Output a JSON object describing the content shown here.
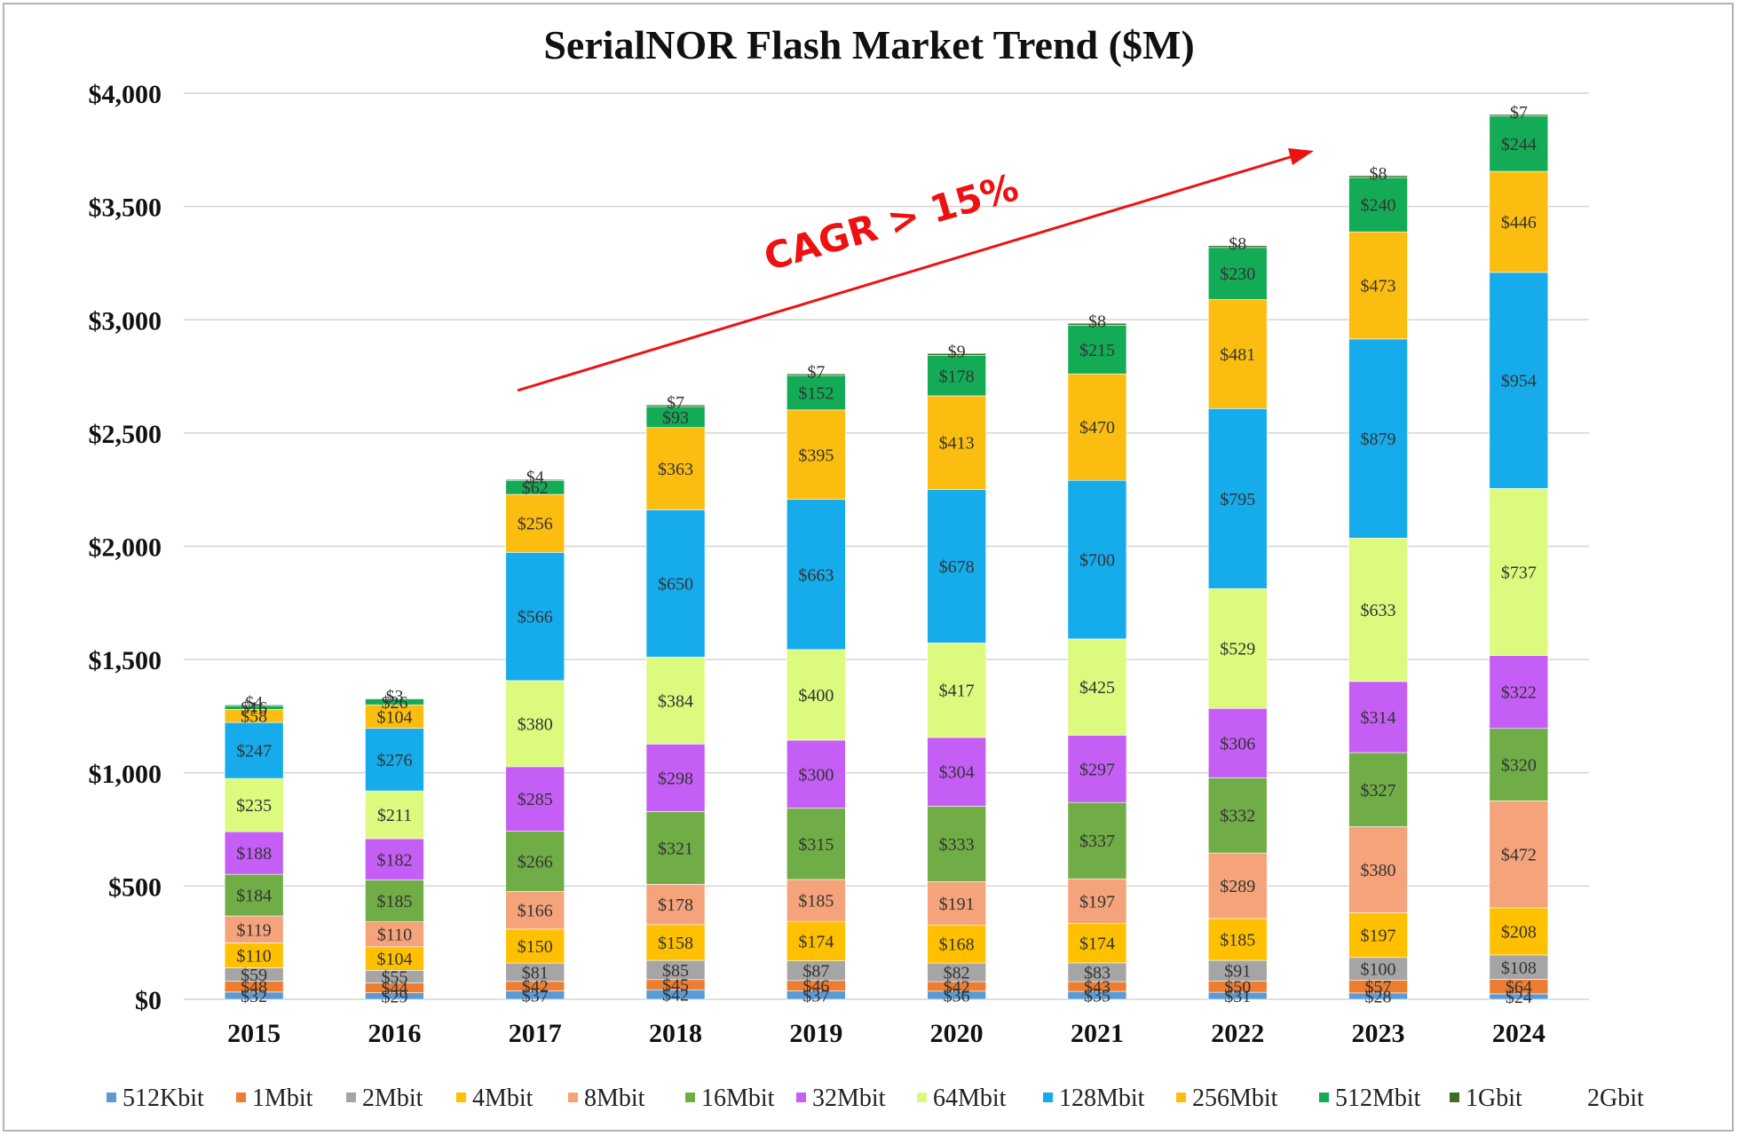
{
  "chart_data": {
    "type": "bar",
    "stacked": true,
    "title": "SerialNOR Flash Market Trend ($M)",
    "xlabel": "",
    "ylabel": "",
    "ylim": [
      0,
      4000
    ],
    "yticks": [
      0,
      500,
      1000,
      1500,
      2000,
      2500,
      3000,
      3500,
      4000
    ],
    "ytick_labels": [
      "$0",
      "$500",
      "$1,000",
      "$1,500",
      "$2,000",
      "$2,500",
      "$3,000",
      "$3,500",
      "$4,000"
    ],
    "grid": true,
    "legend_position": "bottom",
    "categories": [
      "2015",
      "2016",
      "2017",
      "2018",
      "2019",
      "2020",
      "2021",
      "2022",
      "2023",
      "2024"
    ],
    "annotation": {
      "text": "CAGR > 15%",
      "color": "#ee1111"
    },
    "series": [
      {
        "name": "512Kbit",
        "color": "#5b9bd5",
        "values": [
          32,
          29,
          37,
          42,
          37,
          36,
          35,
          31,
          28,
          24
        ]
      },
      {
        "name": "1Mbit",
        "color": "#ed7d31",
        "values": [
          48,
          44,
          42,
          45,
          46,
          42,
          43,
          50,
          57,
          64
        ]
      },
      {
        "name": "2Mbit",
        "color": "#a5a5a5",
        "values": [
          59,
          55,
          81,
          85,
          87,
          82,
          83,
          91,
          100,
          108
        ]
      },
      {
        "name": "4Mbit",
        "color": "#ffc000",
        "values": [
          110,
          104,
          150,
          158,
          174,
          168,
          174,
          185,
          197,
          208
        ]
      },
      {
        "name": "8Mbit",
        "color": "#f4a37a",
        "values": [
          119,
          110,
          166,
          178,
          185,
          191,
          197,
          289,
          380,
          472
        ]
      },
      {
        "name": "16Mbit",
        "color": "#70ad47",
        "values": [
          184,
          185,
          266,
          321,
          315,
          333,
          337,
          332,
          327,
          320
        ]
      },
      {
        "name": "32Mbit",
        "color": "#c55ef5",
        "values": [
          188,
          182,
          285,
          298,
          300,
          304,
          297,
          306,
          314,
          322
        ]
      },
      {
        "name": "64Mbit",
        "color": "#dcfa7e",
        "values": [
          235,
          211,
          380,
          384,
          400,
          417,
          425,
          529,
          633,
          737
        ]
      },
      {
        "name": "128Mbit",
        "color": "#16acec",
        "values": [
          247,
          276,
          566,
          650,
          663,
          678,
          700,
          795,
          879,
          954
        ]
      },
      {
        "name": "256Mbit",
        "color": "#fbbe10",
        "values": [
          58,
          104,
          256,
          363,
          395,
          413,
          470,
          481,
          473,
          446
        ]
      },
      {
        "name": "512Mbit",
        "color": "#14ab56",
        "values": [
          16,
          26,
          62,
          93,
          152,
          178,
          215,
          230,
          240,
          244
        ]
      },
      {
        "name": "1Gbit",
        "color": "#3f6b25",
        "values": [
          4,
          3,
          4,
          7,
          7,
          9,
          8,
          8,
          8,
          7
        ]
      },
      {
        "name": "2Gbit",
        "color": "#ffffff",
        "values": [
          null,
          null,
          null,
          null,
          null,
          null,
          null,
          null,
          null,
          null
        ]
      }
    ],
    "top_labels": [
      "$4",
      "$3",
      "$4",
      "$7",
      "$7",
      "$9",
      "$8",
      "$8",
      "$8",
      "$7"
    ]
  }
}
